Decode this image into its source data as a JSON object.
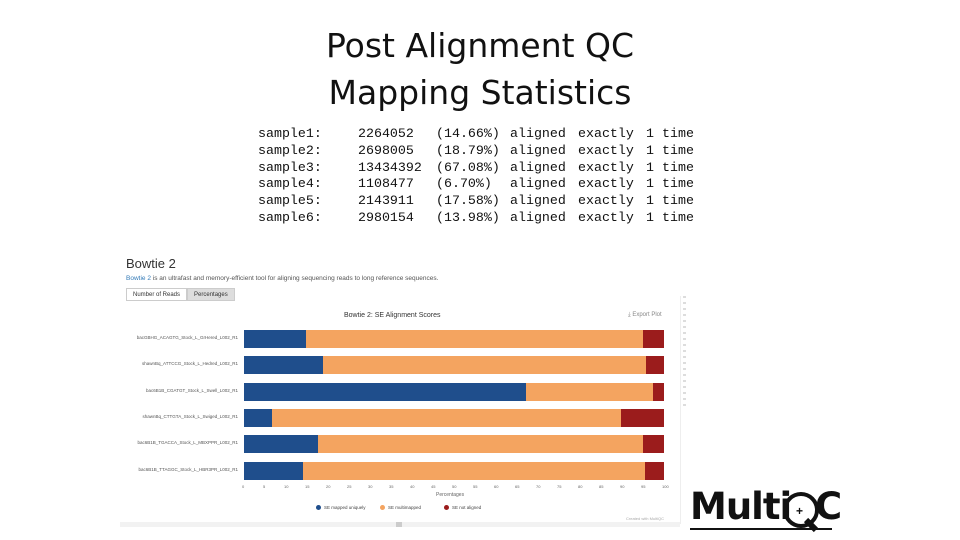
{
  "slide": {
    "title_line1": "Post Alignment QC",
    "title_line2": "Mapping Statistics"
  },
  "stats": [
    {
      "sample": "sample1:",
      "count": "2264052",
      "pct": "(14.66%)",
      "word1": "aligned",
      "word2": "exactly",
      "one": "1",
      "time": "time"
    },
    {
      "sample": "sample2:",
      "count": "2698005",
      "pct": "(18.79%)",
      "word1": "aligned",
      "word2": "exactly",
      "one": "1",
      "time": "time"
    },
    {
      "sample": "sample3:",
      "count": "13434392",
      "pct": "(67.08%)",
      "word1": "aligned",
      "word2": "exactly",
      "one": "1",
      "time": "time"
    },
    {
      "sample": "sample4:",
      "count": "1108477",
      "pct": "(6.70%)",
      "word1": "aligned",
      "word2": "exactly",
      "one": "1",
      "time": "time"
    },
    {
      "sample": "sample5:",
      "count": "2143911",
      "pct": "(17.58%)",
      "word1": "aligned",
      "word2": "exactly",
      "one": "1",
      "time": "time"
    },
    {
      "sample": "sample6:",
      "count": "2980154",
      "pct": "(13.98%)",
      "word1": "aligned",
      "word2": "exactly",
      "one": "1",
      "time": "time"
    }
  ],
  "screenshot": {
    "section_title": "Bowtie 2",
    "desc_link": "Bowtie 2",
    "desc_text": " is an ultrafast and memory-efficient tool for aligning sequencing reads to long reference sequences.",
    "btn_numbers": "Number of Reads",
    "btn_percentages": "Percentages",
    "export_label": "Export Plot",
    "credit": "Created with MultiQC"
  },
  "chart_data": {
    "type": "bar",
    "orientation": "horizontal",
    "stacked": true,
    "title": "Bowtie 2: SE Alignment Scores",
    "xlabel": "Percentages",
    "xlim": [
      0,
      100
    ],
    "xticks": [
      "0",
      "5",
      "10",
      "15",
      "20",
      "25",
      "30",
      "35",
      "40",
      "45",
      "50",
      "55",
      "60",
      "65",
      "70",
      "75",
      "80",
      "85",
      "90",
      "95",
      "100"
    ],
    "categories": [
      "bacGBHG_ACAGTG_Stock_L_GrHered_L002_R1",
      "shawnBq_ATTCCG_Stock_L_Hedred_L002_R1",
      "bac6B1B_CGATGT_Stock_L_Swell_L002_R1",
      "shawnBq_CTTGTA_Stock_L_Swiged_L002_R1",
      "bac6B1B_TGACCA_Stock_L_MBXPPR_L002_R1",
      "bac6B1B_TTAGGC_Stock_L_HBR3PR_L002_R1"
    ],
    "series": [
      {
        "name": "SE mapped uniquely",
        "color": "#1f4e8c",
        "values": [
          14.66,
          18.79,
          67.08,
          6.7,
          17.58,
          13.98
        ]
      },
      {
        "name": "SE multimapped",
        "color": "#f4a460",
        "values": [
          80.3,
          76.9,
          30.2,
          83.0,
          77.4,
          81.5
        ]
      },
      {
        "name": "SE not aligned",
        "color": "#9b1c1c",
        "values": [
          5.04,
          4.31,
          2.72,
          10.3,
          5.02,
          4.52
        ]
      }
    ],
    "legend_position": "bottom"
  },
  "logo": {
    "text": "MultiQC"
  }
}
